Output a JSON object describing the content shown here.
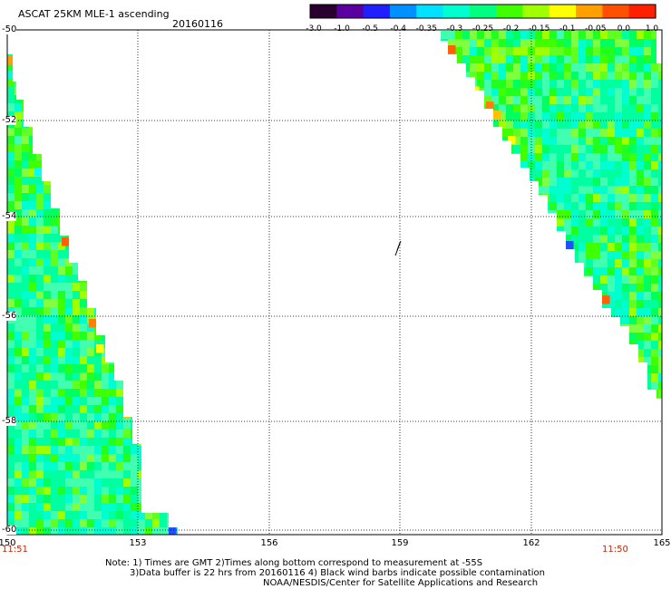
{
  "header": {
    "title": "ASCAT 25KM MLE-1 ascending",
    "date": "20160116"
  },
  "colorbar": {
    "labels": [
      "-3.0",
      "-1.0",
      "-0.5",
      "-0.4",
      "-0.35",
      "-0.3",
      "-0.25",
      "-0.2",
      "-0.15",
      "-0.1",
      "-0.05",
      "0.0",
      "1.0"
    ],
    "colors": [
      "#2a0030",
      "#5a00a0",
      "#2020ff",
      "#0090ff",
      "#00e0ff",
      "#00ffd0",
      "#00ff80",
      "#40ff00",
      "#a0ff00",
      "#ffff00",
      "#ffa000",
      "#ff5000",
      "#ff2000"
    ]
  },
  "axes": {
    "y_ticks": [
      "-50",
      "-52",
      "-54",
      "-56",
      "-58",
      "-60"
    ],
    "x_ticks": [
      "150",
      "153",
      "156",
      "159",
      "162",
      "165"
    ]
  },
  "times": {
    "left": "11:51",
    "right": "11:50"
  },
  "notes": {
    "line1": "Note: 1) Times are GMT 2)Times along bottom correspond to measurement at -55S",
    "line2": "3)Data buffer is 22 hrs from 20160116 4) Black wind barbs indicate possible contamination",
    "line3": "NOAA/NESDIS/Center for Satellite Applications and Research"
  }
}
